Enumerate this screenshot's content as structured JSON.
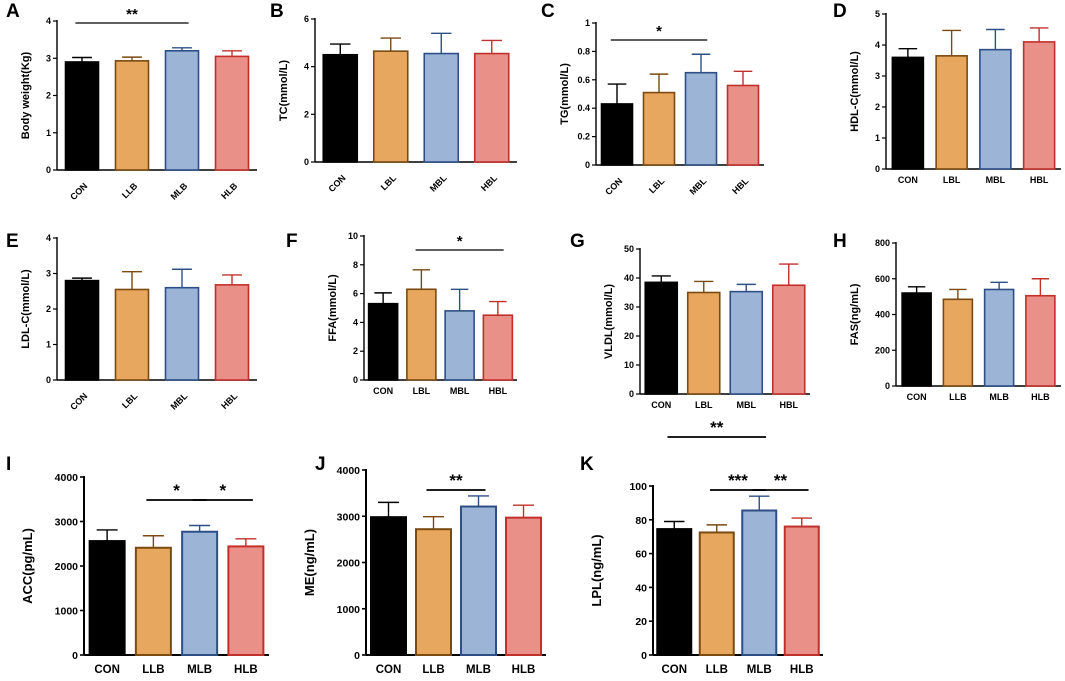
{
  "chart_data": [
    {
      "panel": "A",
      "type": "bar",
      "ylabel": "Body weight(Kg)",
      "ylim": [
        0,
        4
      ],
      "yticks": [
        0,
        1,
        2,
        3,
        4
      ],
      "categories": [
        "CON",
        "LLB",
        "MLB",
        "HLB"
      ],
      "values": [
        2.9,
        2.93,
        3.2,
        3.05
      ],
      "errors": [
        0.12,
        0.1,
        0.08,
        0.15
      ],
      "significance": [
        {
          "from": 0,
          "to": 2,
          "label": "**"
        }
      ]
    },
    {
      "panel": "B",
      "type": "bar",
      "ylabel": "TC(mmol/L)",
      "ylim": [
        0,
        6
      ],
      "yticks": [
        0,
        2,
        4,
        6
      ],
      "categories": [
        "CON",
        "LBL",
        "MBL",
        "HBL"
      ],
      "values": [
        4.5,
        4.65,
        4.55,
        4.55
      ],
      "errors": [
        0.45,
        0.55,
        0.85,
        0.55
      ],
      "significance": []
    },
    {
      "panel": "C",
      "type": "bar",
      "ylabel": "TG(mmol/L)",
      "ylim": [
        0,
        1.0
      ],
      "yticks": [
        0.0,
        0.2,
        0.4,
        0.6,
        0.8,
        1.0
      ],
      "categories": [
        "CON",
        "LBL",
        "MBL",
        "HBL"
      ],
      "values": [
        0.43,
        0.51,
        0.65,
        0.56
      ],
      "errors": [
        0.14,
        0.13,
        0.13,
        0.1
      ],
      "significance": [
        {
          "from": 0,
          "to": 2,
          "label": "*"
        }
      ]
    },
    {
      "panel": "D",
      "type": "bar",
      "ylabel": "HDL-C(mmol/L)",
      "ylim": [
        0,
        5
      ],
      "yticks": [
        0,
        1,
        2,
        3,
        4,
        5
      ],
      "categories": [
        "CON",
        "LBL",
        "MBL",
        "HBL"
      ],
      "values": [
        3.6,
        3.65,
        3.85,
        4.1
      ],
      "errors": [
        0.28,
        0.82,
        0.65,
        0.45
      ],
      "significance": []
    },
    {
      "panel": "E",
      "type": "bar",
      "ylabel": "LDL-C(mmol/L)",
      "ylim": [
        0,
        4
      ],
      "yticks": [
        0,
        1,
        2,
        3,
        4
      ],
      "categories": [
        "CON",
        "LBL",
        "MBL",
        "HBL"
      ],
      "values": [
        2.8,
        2.55,
        2.6,
        2.68
      ],
      "errors": [
        0.07,
        0.5,
        0.52,
        0.28
      ],
      "significance": []
    },
    {
      "panel": "F",
      "type": "bar",
      "ylabel": "FFA(mmol/L)",
      "ylim": [
        0,
        10
      ],
      "yticks": [
        0,
        2,
        4,
        6,
        8,
        10
      ],
      "categories": [
        "CON",
        "LBL",
        "MBL",
        "HBL"
      ],
      "values": [
        5.3,
        6.3,
        4.8,
        4.5
      ],
      "errors": [
        0.75,
        1.35,
        1.5,
        0.95
      ],
      "significance": [
        {
          "from": 1,
          "to": 3,
          "label": "*"
        }
      ]
    },
    {
      "panel": "G",
      "type": "bar",
      "ylabel": "VLDL(mmol/L)",
      "ylim": [
        0,
        50
      ],
      "yticks": [
        0,
        10,
        20,
        30,
        40,
        50
      ],
      "categories": [
        "CON",
        "LBL",
        "MBL",
        "HBL"
      ],
      "values": [
        38.5,
        35,
        35.3,
        37.5
      ],
      "errors": [
        2.2,
        3.8,
        2.5,
        7.3
      ],
      "significance": []
    },
    {
      "panel": "H",
      "type": "bar",
      "ylabel": "FAS(ng/mL)",
      "ylim": [
        0,
        800
      ],
      "yticks": [
        0,
        200,
        400,
        600,
        800
      ],
      "categories": [
        "CON",
        "LLB",
        "MLB",
        "HLB"
      ],
      "values": [
        520,
        485,
        540,
        505
      ],
      "errors": [
        35,
        55,
        40,
        95
      ],
      "significance": []
    },
    {
      "panel": "I",
      "type": "bar",
      "ylabel": "ACC(pg/mL)",
      "ylim": [
        0,
        4000
      ],
      "yticks": [
        0,
        1000,
        2000,
        3000,
        4000
      ],
      "categories": [
        "CON",
        "LLB",
        "MLB",
        "HLB"
      ],
      "values": [
        2560,
        2410,
        2770,
        2440
      ],
      "errors": [
        250,
        270,
        140,
        170
      ],
      "significance": [
        {
          "from": 1,
          "to": 2,
          "label": "*"
        },
        {
          "from": 2,
          "to": 3,
          "label": "*"
        }
      ]
    },
    {
      "panel": "J",
      "type": "bar",
      "ylabel": "ME(ng/mL)",
      "ylim": [
        0,
        4000
      ],
      "yticks": [
        0,
        1000,
        2000,
        3000,
        4000
      ],
      "categories": [
        "CON",
        "LLB",
        "MLB",
        "HLB"
      ],
      "values": [
        2980,
        2720,
        3210,
        2970
      ],
      "errors": [
        320,
        270,
        230,
        270
      ],
      "significance": [
        {
          "from": 1,
          "to": 2,
          "label": "**"
        }
      ]
    },
    {
      "panel": "K",
      "type": "bar",
      "ylabel": "LPL(ng/mL)",
      "ylim": [
        0,
        100
      ],
      "yticks": [
        0,
        20,
        40,
        60,
        80,
        100
      ],
      "categories": [
        "CON",
        "LLB",
        "MLB",
        "HLB"
      ],
      "values": [
        74.5,
        72.5,
        85.5,
        76
      ],
      "errors": [
        4.5,
        4.5,
        8.5,
        5
      ],
      "significance": [
        {
          "from": 0,
          "to": 2,
          "label": "**"
        },
        {
          "from": 1,
          "to": 2,
          "label": "***"
        },
        {
          "from": 2,
          "to": 3,
          "label": "**"
        }
      ]
    }
  ],
  "colors": {
    "fills": [
      "#000000",
      "#E8A75E",
      "#9CB4D6",
      "#E99089"
    ],
    "strokes": [
      "#000000",
      "#7A4A10",
      "#2D4F86",
      "#C2302B"
    ]
  }
}
